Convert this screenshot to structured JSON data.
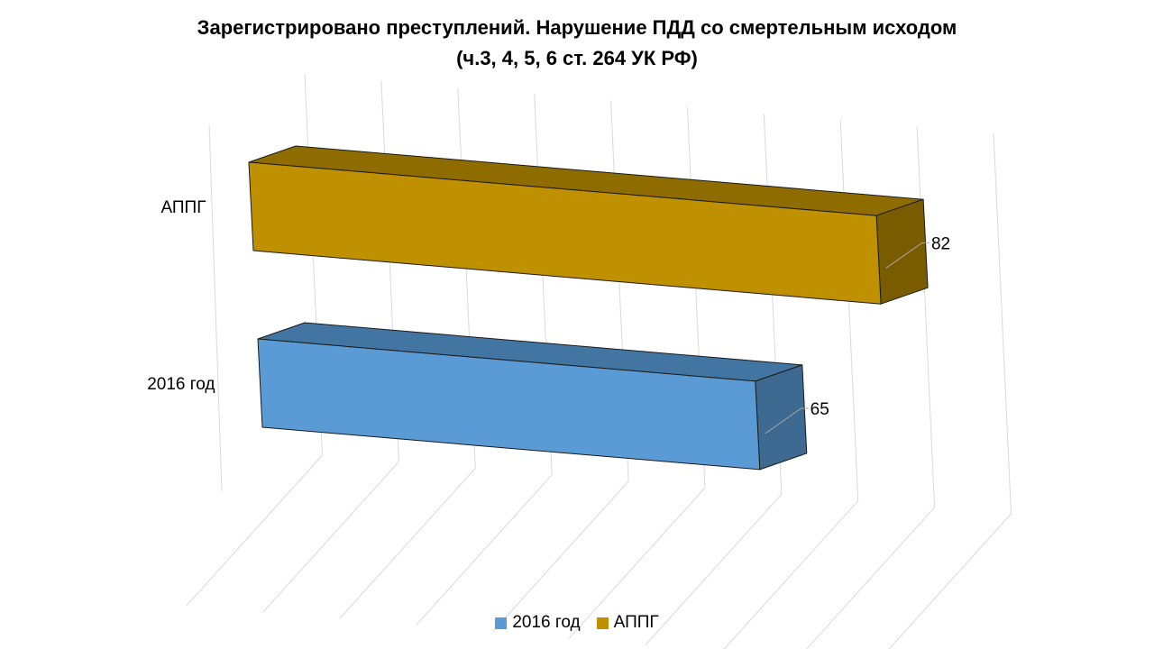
{
  "chart_data": {
    "type": "bar",
    "orientation": "horizontal",
    "style": "3d",
    "title_line1": "Зарегистрировано  преступлений. Нарушение ПДД со смертельным исходом",
    "title_line2": "(ч.3, 4, 5, 6 ст. 264 УК РФ)",
    "categories": [
      "АППГ",
      "2016 год"
    ],
    "series": [
      {
        "name": "2016 год",
        "category": "2016 год",
        "value": 65,
        "color": "#5B9BD5",
        "top_color": "#4275A1",
        "side_color": "#3E6A92"
      },
      {
        "name": "АППГ",
        "category": "АППГ",
        "value": 82,
        "color": "#BF9000",
        "top_color": "#8F6C00",
        "side_color": "#7A5C00"
      }
    ],
    "xlim": [
      0,
      90
    ],
    "grid": true,
    "legend_position": "bottom"
  },
  "legend": {
    "items": [
      {
        "label": "2016 год",
        "color": "#5B9BD5"
      },
      {
        "label": "АППГ",
        "color": "#BF9000"
      }
    ]
  }
}
